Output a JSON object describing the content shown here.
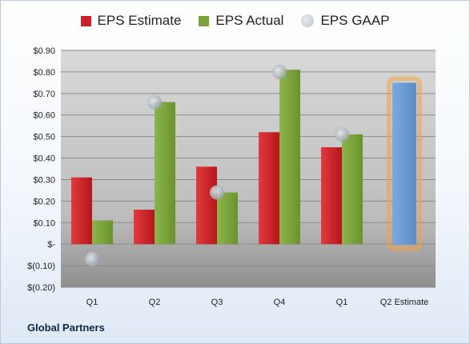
{
  "company": "Global Partners",
  "colors": {
    "estimate": "#cc2126",
    "actual": "#7aa33b",
    "gaap": "#b8bec8",
    "future_estimate": "#6f9ed6",
    "highlight": "#f0a34a"
  },
  "chart_data": {
    "type": "bar",
    "categories": [
      "Q1",
      "Q2",
      "Q3",
      "Q4",
      "Q1",
      "Q2 Estimate"
    ],
    "series": [
      {
        "name": "EPS Estimate",
        "values": [
          0.31,
          0.16,
          0.36,
          0.52,
          0.45,
          null
        ]
      },
      {
        "name": "EPS Actual",
        "values": [
          0.11,
          0.66,
          0.24,
          0.81,
          0.51,
          null
        ]
      },
      {
        "name": "EPS GAAP",
        "values": [
          -0.07,
          0.66,
          0.24,
          0.8,
          0.51,
          null
        ],
        "marker": "circle"
      }
    ],
    "future_estimate": {
      "category": "Q2 Estimate",
      "value": 0.75
    },
    "ylim": [
      -0.2,
      0.9
    ],
    "yticks": [
      0.9,
      0.8,
      0.7,
      0.6,
      0.5,
      0.4,
      0.3,
      0.2,
      0.1,
      0,
      -0.1,
      -0.2
    ],
    "ytick_labels": [
      "$0.90",
      "$0.80",
      "$0.70",
      "$0.60",
      "$0.50",
      "$0.40",
      "$0.30",
      "$0.20",
      "$0.10",
      "$-",
      "$(0.10)",
      "$(0.20)"
    ],
    "grid": true,
    "legend_position": "top"
  }
}
